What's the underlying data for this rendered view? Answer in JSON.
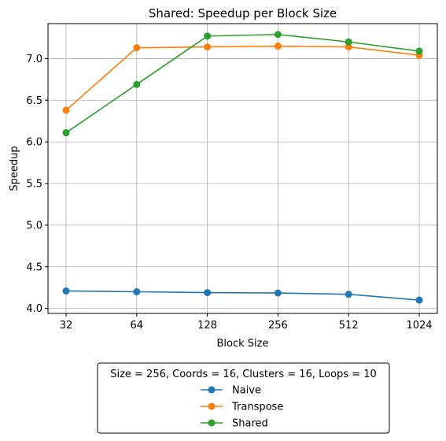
{
  "chart_data": {
    "type": "line",
    "title": "Shared: Speedup per Block Size",
    "xlabel": "Block Size",
    "ylabel": "Speedup",
    "categories": [
      "32",
      "64",
      "128",
      "256",
      "512",
      "1024"
    ],
    "ylim": [
      3.94,
      7.42
    ],
    "yticks": [
      "4.0",
      "4.5",
      "5.0",
      "5.5",
      "6.0",
      "6.5",
      "7.0"
    ],
    "grid": true,
    "legend": {
      "title": "Size = 256, Coords = 16, Clusters = 16, Loops = 10",
      "placement": "below"
    },
    "series": [
      {
        "name": "Naive",
        "color": "#1f77b4",
        "values": [
          4.21,
          4.2,
          4.19,
          4.185,
          4.17,
          4.1
        ]
      },
      {
        "name": "Transpose",
        "color": "#ff7f0e",
        "values": [
          6.38,
          7.13,
          7.14,
          7.15,
          7.14,
          7.04
        ]
      },
      {
        "name": "Shared",
        "color": "#2ca02c",
        "values": [
          6.11,
          6.69,
          7.27,
          7.29,
          7.2,
          7.09
        ]
      }
    ]
  }
}
